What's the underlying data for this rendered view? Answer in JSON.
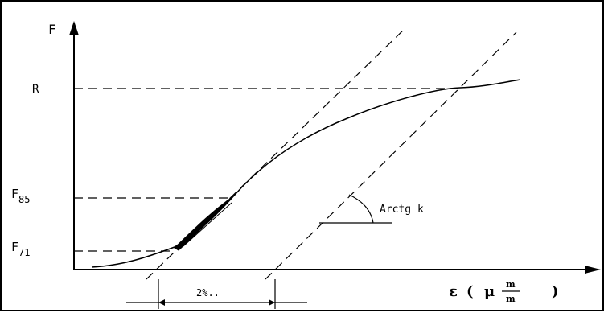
{
  "labels": {
    "y_axis": "F",
    "R": "R",
    "F85_main": "F",
    "F85_sub": "85",
    "F71_main": "F",
    "F71_sub": "71",
    "angle": "Arctg k",
    "offset": "2%..",
    "x_eps": "ε",
    "x_open": "(",
    "x_mu": "μ",
    "x_num": "m",
    "x_den": "m",
    "x_close": ")"
  }
}
